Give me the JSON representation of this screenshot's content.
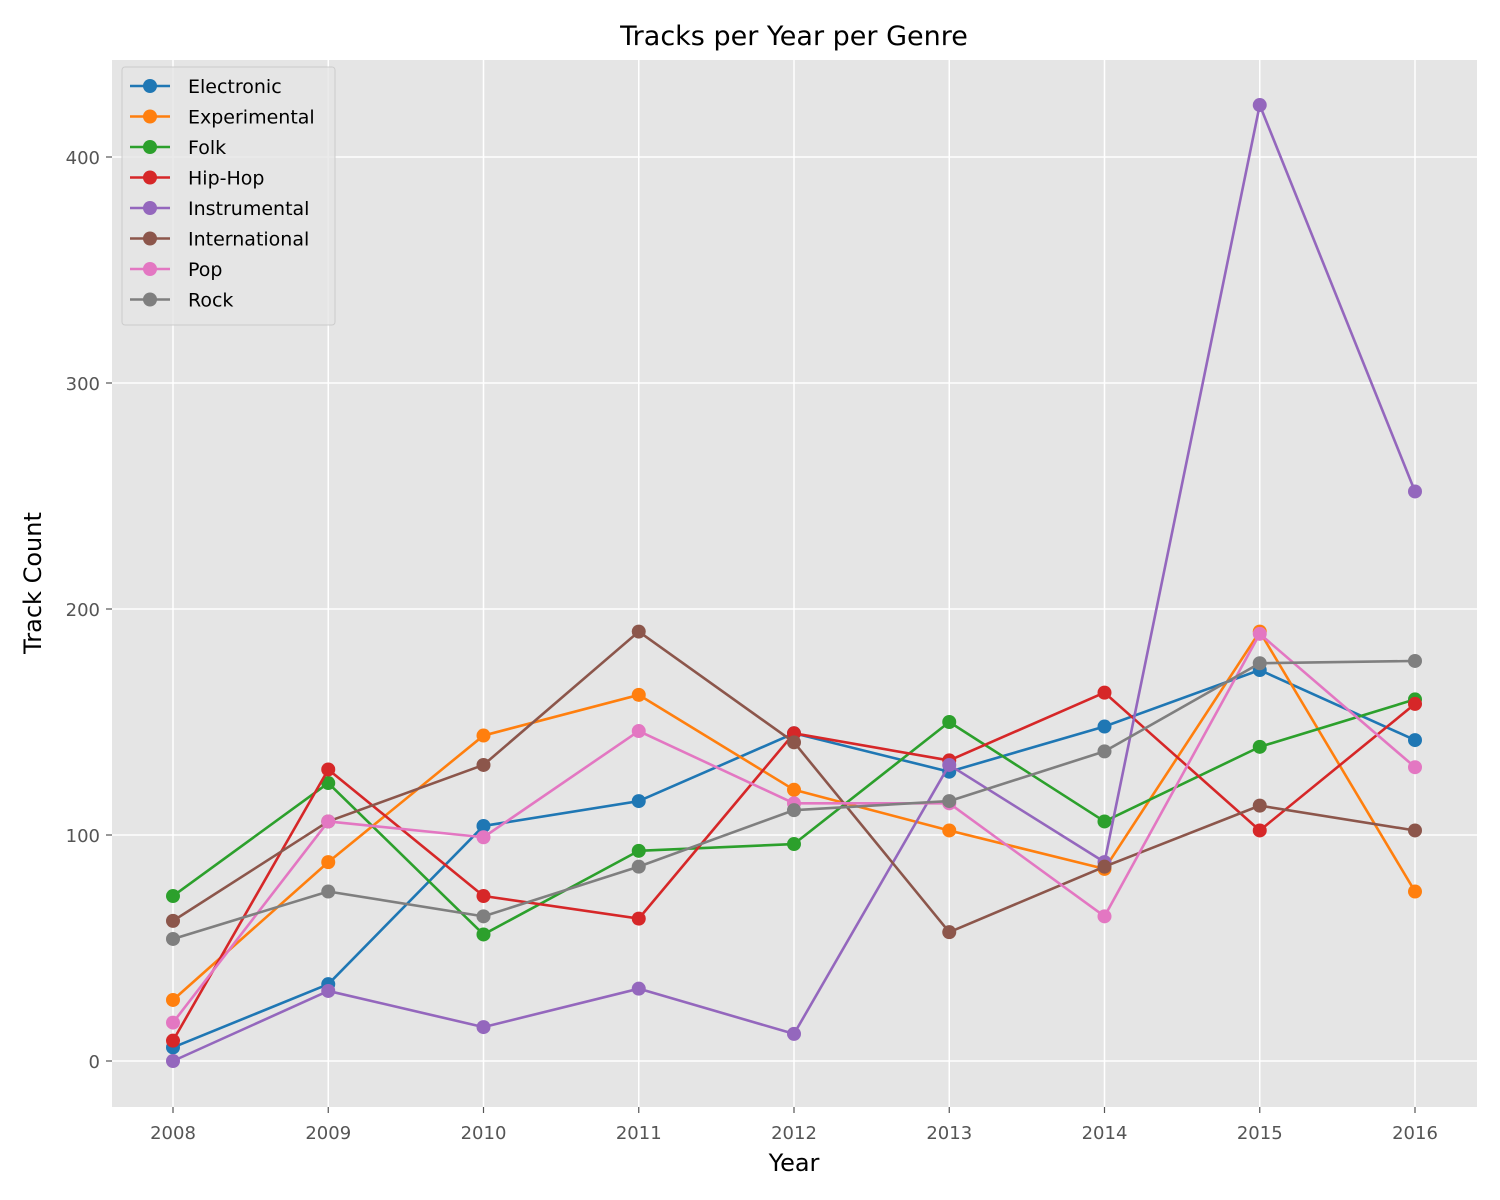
{
  "chart_data": {
    "type": "line",
    "title": "Tracks per Year per Genre",
    "xlabel": "Year",
    "ylabel": "Track Count",
    "x": [
      2008,
      2009,
      2010,
      2011,
      2012,
      2013,
      2014,
      2015,
      2016
    ],
    "x_tick_labels": [
      "2008",
      "2009",
      "2010",
      "2011",
      "2012",
      "2013",
      "2014",
      "2015",
      "2016"
    ],
    "ylim": [
      -20,
      443
    ],
    "y_ticks": [
      0,
      100,
      200,
      300,
      400
    ],
    "y_tick_labels": [
      "0",
      "100",
      "200",
      "300",
      "400"
    ],
    "grid": true,
    "legend_position": "top-left",
    "background": "#e5e5e5",
    "series": [
      {
        "name": "Electronic",
        "color": "#1f77b4",
        "values": [
          6,
          34,
          104,
          115,
          145,
          128,
          148,
          173,
          142
        ]
      },
      {
        "name": "Experimental",
        "color": "#ff7f0e",
        "values": [
          27,
          88,
          144,
          162,
          120,
          102,
          85,
          190,
          75
        ]
      },
      {
        "name": "Folk",
        "color": "#2ca02c",
        "values": [
          73,
          123,
          56,
          93,
          96,
          150,
          106,
          139,
          160
        ]
      },
      {
        "name": "Hip-Hop",
        "color": "#d62728",
        "values": [
          9,
          129,
          73,
          63,
          145,
          133,
          163,
          102,
          158
        ]
      },
      {
        "name": "Instrumental",
        "color": "#9467bd",
        "values": [
          0,
          31,
          15,
          32,
          12,
          131,
          88,
          423,
          252
        ]
      },
      {
        "name": "International",
        "color": "#8c564b",
        "values": [
          62,
          106,
          131,
          190,
          141,
          57,
          86,
          113,
          102
        ]
      },
      {
        "name": "Pop",
        "color": "#e377c2",
        "values": [
          17,
          106,
          99,
          146,
          114,
          114,
          64,
          189,
          130
        ]
      },
      {
        "name": "Rock",
        "color": "#7f7f7f",
        "values": [
          54,
          75,
          64,
          86,
          111,
          115,
          137,
          176,
          177
        ]
      }
    ]
  }
}
